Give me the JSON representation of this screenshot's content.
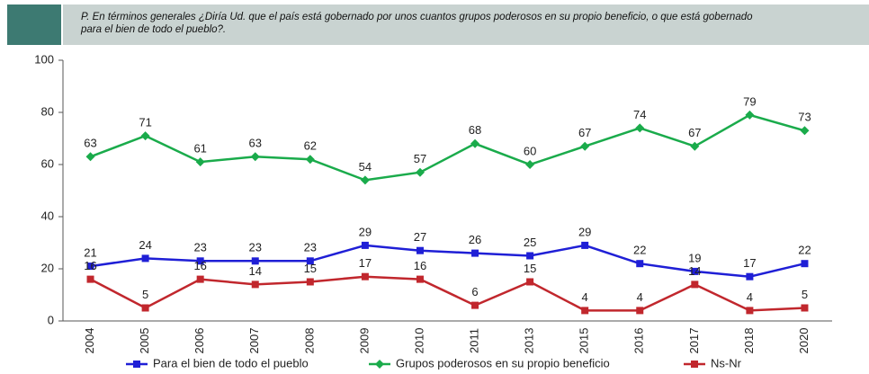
{
  "chart_data": {
    "type": "line",
    "title": "P. En términos generales ¿Diría Ud. que el país está gobernado por unos cuantos grupos poderosos en su propio beneficio, o que está gobernado para el bien de todo el pueblo?.",
    "categories": [
      "2004",
      "2005",
      "2006",
      "2007",
      "2008",
      "2009",
      "2010",
      "2011",
      "2013",
      "2015",
      "2016",
      "2017",
      "2018",
      "2020"
    ],
    "series": [
      {
        "name": "Para el bien de todo el pueblo",
        "color": "#1f1fd6",
        "marker": "square",
        "values": [
          21,
          24,
          23,
          23,
          23,
          29,
          27,
          26,
          25,
          29,
          22,
          19,
          17,
          22
        ]
      },
      {
        "name": "Grupos poderosos en su propio beneficio",
        "color": "#1aab4b",
        "marker": "diamond",
        "values": [
          63,
          71,
          61,
          63,
          62,
          54,
          57,
          68,
          60,
          67,
          74,
          67,
          79,
          73
        ]
      },
      {
        "name": "Ns-Nr",
        "color": "#c1272d",
        "marker": "square",
        "values": [
          16,
          5,
          16,
          14,
          15,
          17,
          16,
          6,
          15,
          4,
          4,
          14,
          4,
          5
        ]
      }
    ],
    "ylim": [
      0,
      100
    ],
    "yticks": [
      0,
      20,
      40,
      60,
      80,
      100
    ],
    "grid": false
  }
}
